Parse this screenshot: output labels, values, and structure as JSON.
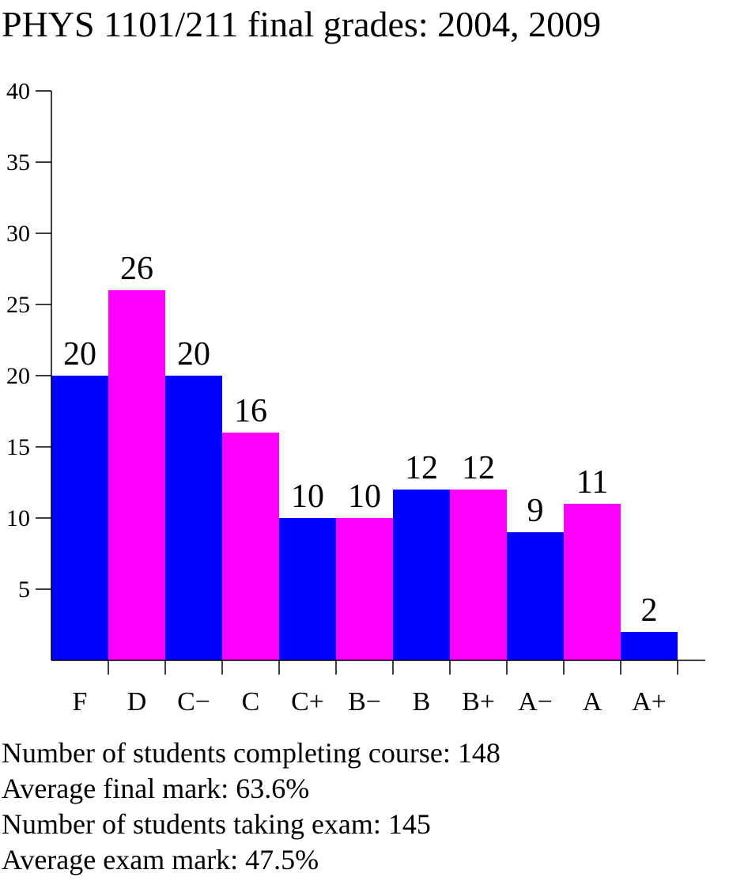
{
  "chart_data": {
    "type": "bar",
    "title": "PHYS 1101/211 final grades: 2004, 2009",
    "categories": [
      "F",
      "D",
      "C−",
      "C",
      "C+",
      "B−",
      "B",
      "B+",
      "A−",
      "A",
      "A+"
    ],
    "values": [
      20,
      26,
      20,
      16,
      10,
      10,
      12,
      12,
      9,
      11,
      2
    ],
    "bar_colors": [
      "#0000ff",
      "#ff00ff"
    ],
    "yticks": [
      5,
      10,
      15,
      20,
      25,
      30,
      35,
      40
    ],
    "ylim": [
      0,
      40
    ],
    "xlabel": "",
    "ylabel": "",
    "grid": false
  },
  "stats": {
    "line1": "Number of students completing course: 148",
    "line2": "Average final mark: 63.6%",
    "line3": "Number of students taking exam: 145",
    "line4": "Average exam mark: 47.5%"
  }
}
